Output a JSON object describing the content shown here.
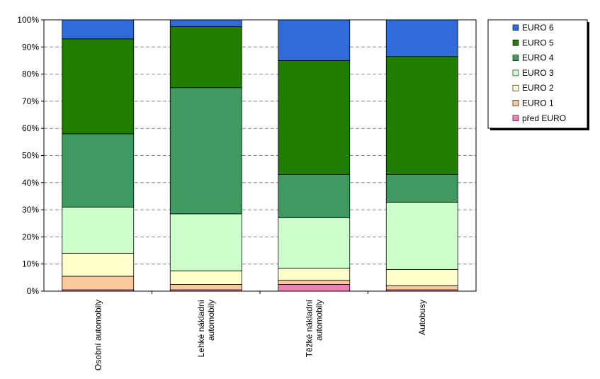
{
  "chart_data": {
    "type": "bar",
    "stacked": true,
    "categories": [
      [
        "Osobní automobily"
      ],
      [
        "Lehké nákladní",
        "automobily"
      ],
      [
        "Těžké nákladní",
        "automobily"
      ],
      [
        "Autobusy"
      ]
    ],
    "series": [
      {
        "name": "před EURO",
        "color": "#ee82b4",
        "values": [
          0.5,
          0.5,
          2.5,
          0.5
        ]
      },
      {
        "name": "EURO 1",
        "color": "#f9c99b",
        "values": [
          5.0,
          2.0,
          1.5,
          1.5
        ]
      },
      {
        "name": "EURO 2",
        "color": "#ffffcc",
        "values": [
          8.5,
          5.0,
          4.5,
          6.0
        ]
      },
      {
        "name": "EURO 3",
        "color": "#ccffcc",
        "values": [
          17.0,
          21.0,
          18.5,
          24.8
        ]
      },
      {
        "name": "EURO 4",
        "color": "#3f9a62",
        "values": [
          27.0,
          46.5,
          16.0,
          10.2
        ]
      },
      {
        "name": "EURO 5",
        "color": "#217d00",
        "values": [
          35.0,
          22.5,
          42.0,
          43.5
        ]
      },
      {
        "name": "EURO 6",
        "color": "#2f6bdb",
        "values": [
          7.0,
          2.5,
          15.0,
          13.5
        ]
      }
    ],
    "yticks": [
      "0%",
      "10%",
      "20%",
      "30%",
      "40%",
      "50%",
      "60%",
      "70%",
      "80%",
      "90%",
      "100%"
    ],
    "ylim": [
      0,
      100
    ],
    "grid": true,
    "legend_position": "right",
    "legend_order": [
      "EURO 6",
      "EURO 5",
      "EURO 4",
      "EURO 3",
      "EURO 2",
      "EURO 1",
      "před EURO"
    ]
  }
}
